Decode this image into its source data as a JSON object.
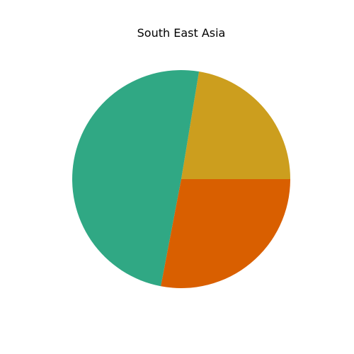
{
  "chart_data": {
    "type": "pie",
    "title": "South East Asia",
    "slices": [
      {
        "value": 22.4,
        "color": "#cc9e1e"
      },
      {
        "value": 49.6,
        "color": "#30a884"
      },
      {
        "value": 28.0,
        "color": "#d95f00"
      }
    ],
    "start_angle_deg": 0,
    "direction": "counterclockwise"
  }
}
